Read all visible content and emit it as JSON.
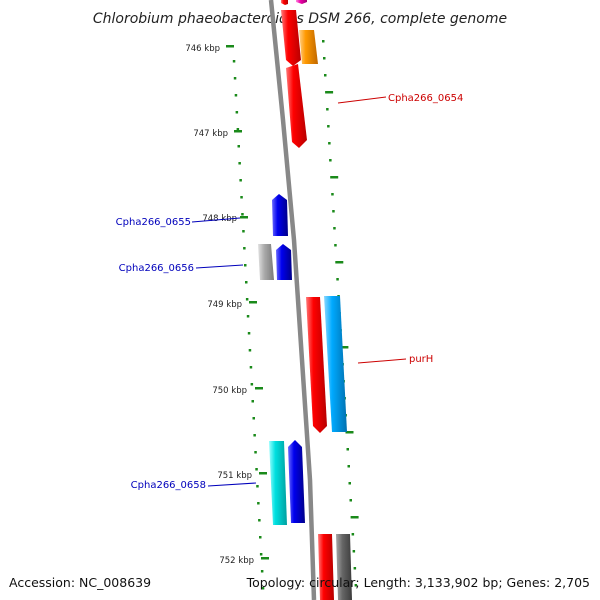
{
  "title": "Chlorobium phaeobacteroides DSM 266, complete genome",
  "footer": {
    "accession": "Accession: NC_008639",
    "topology": "Topology: circular; Length: 3,133,902 bp; Genes: 2,705"
  },
  "ticks": [
    "746 kbp",
    "747 kbp",
    "748 kbp",
    "749 kbp",
    "750 kbp",
    "751 kbp",
    "752 kbp"
  ],
  "gene_labels": [
    {
      "text": "Cpha266_0654",
      "color": "#cc0000"
    },
    {
      "text": "Cpha266_0655",
      "color": "#0000bb"
    },
    {
      "text": "Cpha266_0656",
      "color": "#0000bb"
    },
    {
      "text": "purH",
      "color": "#cc0000"
    },
    {
      "text": "Cpha266_0658",
      "color": "#0000bb"
    }
  ],
  "colors": {
    "backbone": "#888888",
    "tick_marks": "#1a8a1a",
    "red": "#ff0000",
    "orange": "#ff9900",
    "blue": "#0000ee",
    "gray": "#aaaaaa",
    "light_blue": "#00aaff",
    "cyan": "#00e0e0",
    "dark_gray": "#666666",
    "magenta": "#ee00aa"
  }
}
